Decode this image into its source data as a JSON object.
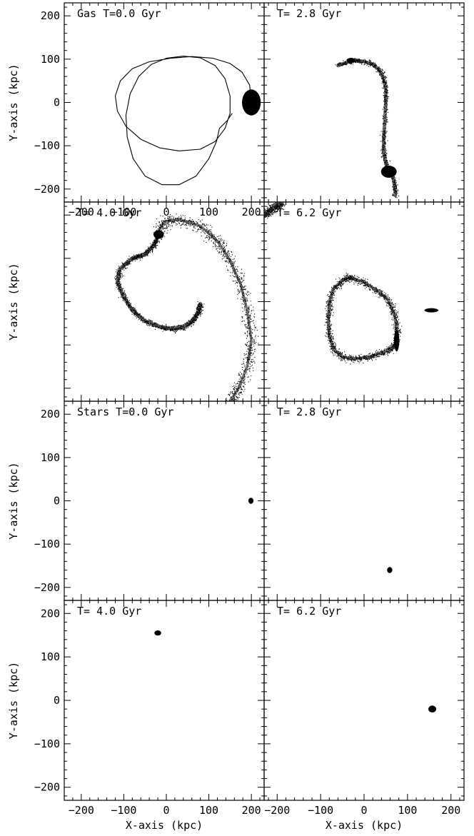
{
  "figure": {
    "xlabel": "X-axis (kpc)",
    "ylabel": "Y-axis (kpc)",
    "ink_color": "#000000",
    "background": "#ffffff"
  },
  "chart_data": [
    {
      "type": "scatter",
      "panel": "gas-0",
      "label": "Gas T=0.0 Gyr",
      "xlim": [
        -240,
        230
      ],
      "ylim": [
        -230,
        230
      ],
      "xticks": [
        -200,
        -100,
        0,
        100,
        200
      ],
      "yticks": [
        -200,
        -100,
        0,
        100,
        200
      ],
      "features": [
        {
          "kind": "orbit",
          "points": [
            [
              200,
              0
            ],
            [
              196,
              40
            ],
            [
              178,
              70
            ],
            [
              150,
              90
            ],
            [
              110,
              102
            ],
            [
              60,
              106
            ],
            [
              10,
              102
            ],
            [
              -40,
              94
            ],
            [
              -80,
              78
            ],
            [
              -108,
              50
            ],
            [
              -120,
              15
            ],
            [
              -115,
              -20
            ],
            [
              -95,
              -55
            ],
            [
              -60,
              -85
            ],
            [
              -15,
              -105
            ],
            [
              30,
              -112
            ],
            [
              80,
              -108
            ],
            [
              115,
              -90
            ],
            [
              138,
              -60
            ],
            [
              150,
              -25
            ],
            [
              150,
              15
            ],
            [
              138,
              55
            ],
            [
              115,
              85
            ],
            [
              80,
              103
            ],
            [
              40,
              107
            ],
            [
              0,
              102
            ],
            [
              -35,
              88
            ],
            [
              -65,
              60
            ],
            [
              -85,
              20
            ],
            [
              -95,
              -30
            ],
            [
              -92,
              -80
            ],
            [
              -78,
              -130
            ],
            [
              -50,
              -170
            ],
            [
              -10,
              -190
            ],
            [
              30,
              -190
            ],
            [
              70,
              -170
            ],
            [
              100,
              -130
            ],
            [
              118,
              -90
            ],
            [
              125,
              -60
            ],
            [
              143,
              -42
            ],
            [
              155,
              -25
            ]
          ]
        },
        {
          "kind": "blob",
          "cx": 200,
          "cy": 0,
          "rx": 22,
          "ry": 30
        }
      ]
    },
    {
      "type": "scatter",
      "panel": "gas-2.8",
      "label": "T= 2.8 Gyr",
      "xlim": [
        -230,
        230
      ],
      "ylim": [
        -230,
        230
      ],
      "xticks": [],
      "yticks": [],
      "features": [
        {
          "kind": "stream",
          "points": [
            [
              -60,
              85
            ],
            [
              -40,
              93
            ],
            [
              -20,
              97
            ],
            [
              0,
              95
            ],
            [
              20,
              88
            ],
            [
              35,
              75
            ],
            [
              45,
              55
            ],
            [
              50,
              30
            ],
            [
              50,
              0
            ],
            [
              48,
              -40
            ],
            [
              45,
              -80
            ],
            [
              45,
              -115
            ],
            [
              50,
              -140
            ],
            [
              55,
              -155
            ],
            [
              65,
              -165
            ],
            [
              70,
              -190
            ],
            [
              72,
              -215
            ]
          ],
          "width": 8,
          "scatter": 6,
          "n": 900
        },
        {
          "kind": "blob",
          "cx": 57,
          "cy": -160,
          "rx": 18,
          "ry": 14
        },
        {
          "kind": "blob",
          "cx": -30,
          "cy": 97,
          "rx": 10,
          "ry": 6
        }
      ]
    },
    {
      "type": "scatter",
      "panel": "gas-4.0",
      "label": "T= 4.0 Gyr",
      "xlim": [
        -240,
        230
      ],
      "ylim": [
        -230,
        230
      ],
      "xticks": [],
      "yticks": [],
      "features": [
        {
          "kind": "stream",
          "points": [
            [
              80,
              -5
            ],
            [
              75,
              -25
            ],
            [
              60,
              -45
            ],
            [
              40,
              -58
            ],
            [
              15,
              -63
            ],
            [
              -15,
              -58
            ],
            [
              -50,
              -45
            ],
            [
              -80,
              -20
            ],
            [
              -100,
              10
            ],
            [
              -115,
              45
            ],
            [
              -110,
              75
            ],
            [
              -80,
              100
            ],
            [
              -50,
              110
            ],
            [
              -30,
              130
            ],
            [
              -20,
              150
            ]
          ],
          "width": 9,
          "scatter": 7,
          "n": 1300
        },
        {
          "kind": "stream",
          "points": [
            [
              -20,
              160
            ],
            [
              -5,
              185
            ],
            [
              30,
              190
            ],
            [
              80,
              175
            ],
            [
              120,
              140
            ],
            [
              150,
              95
            ],
            [
              175,
              40
            ],
            [
              190,
              -20
            ],
            [
              200,
              -90
            ],
            [
              190,
              -150
            ],
            [
              170,
              -200
            ],
            [
              150,
              -230
            ]
          ],
          "width": 6,
          "scatter": 14,
          "n": 1100
        },
        {
          "kind": "blob",
          "cx": -18,
          "cy": 155,
          "rx": 12,
          "ry": 10
        }
      ]
    },
    {
      "type": "scatter",
      "panel": "gas-6.2",
      "label": "T= 6.2 Gyr",
      "xlim": [
        -230,
        230
      ],
      "ylim": [
        -230,
        230
      ],
      "xticks": [],
      "yticks": [],
      "features": [
        {
          "kind": "stream",
          "points": [
            [
              -30,
              55
            ],
            [
              0,
              45
            ],
            [
              30,
              25
            ],
            [
              55,
              5
            ],
            [
              70,
              -30
            ],
            [
              75,
              -60
            ],
            [
              75,
              -95
            ],
            [
              60,
              -110
            ],
            [
              35,
              -120
            ],
            [
              10,
              -128
            ],
            [
              -20,
              -132
            ],
            [
              -50,
              -128
            ],
            [
              -70,
              -110
            ],
            [
              -80,
              -80
            ],
            [
              -82,
              -40
            ],
            [
              -80,
              0
            ],
            [
              -70,
              30
            ],
            [
              -50,
              50
            ],
            [
              -30,
              58
            ]
          ],
          "width": 7,
          "scatter": 8,
          "n": 1400
        },
        {
          "kind": "stream",
          "points": [
            [
              -230,
              200
            ],
            [
              -210,
              215
            ],
            [
              -190,
              225
            ]
          ],
          "width": 12,
          "scatter": 10,
          "n": 300
        },
        {
          "kind": "blob",
          "cx": 155,
          "cy": -20,
          "rx": 16,
          "ry": 5
        },
        {
          "kind": "blob",
          "cx": 75,
          "cy": -90,
          "rx": 6,
          "ry": 25
        }
      ]
    },
    {
      "type": "scatter",
      "panel": "stars-0",
      "label": "Stars T=0.0 Gyr",
      "xlim": [
        -240,
        230
      ],
      "ylim": [
        -230,
        230
      ],
      "xticks": [],
      "yticks": [
        -200,
        -100,
        0,
        100,
        200
      ],
      "features": [
        {
          "kind": "blob",
          "cx": 199,
          "cy": 0,
          "rx": 6,
          "ry": 7
        }
      ]
    },
    {
      "type": "scatter",
      "panel": "stars-2.8",
      "label": "T= 2.8 Gyr",
      "xlim": [
        -230,
        230
      ],
      "ylim": [
        -230,
        230
      ],
      "xticks": [],
      "yticks": [],
      "features": [
        {
          "kind": "blob",
          "cx": 59,
          "cy": -160,
          "rx": 6,
          "ry": 7
        }
      ]
    },
    {
      "type": "scatter",
      "panel": "stars-4.0",
      "label": "T= 4.0 Gyr",
      "xlim": [
        -240,
        230
      ],
      "ylim": [
        -230,
        230
      ],
      "xticks": [
        -200,
        -100,
        0,
        100,
        200
      ],
      "yticks": [
        -200,
        -100,
        0,
        100,
        200
      ],
      "features": [
        {
          "kind": "blob",
          "cx": -20,
          "cy": 155,
          "rx": 8,
          "ry": 6
        }
      ]
    },
    {
      "type": "scatter",
      "panel": "stars-6.2",
      "label": "T= 6.2 Gyr",
      "xlim": [
        -230,
        230
      ],
      "ylim": [
        -230,
        230
      ],
      "xticks": [
        -200,
        -100,
        0,
        100,
        200
      ],
      "yticks": [],
      "features": [
        {
          "kind": "blob",
          "cx": 157,
          "cy": -20,
          "rx": 9,
          "ry": 8
        }
      ]
    }
  ]
}
